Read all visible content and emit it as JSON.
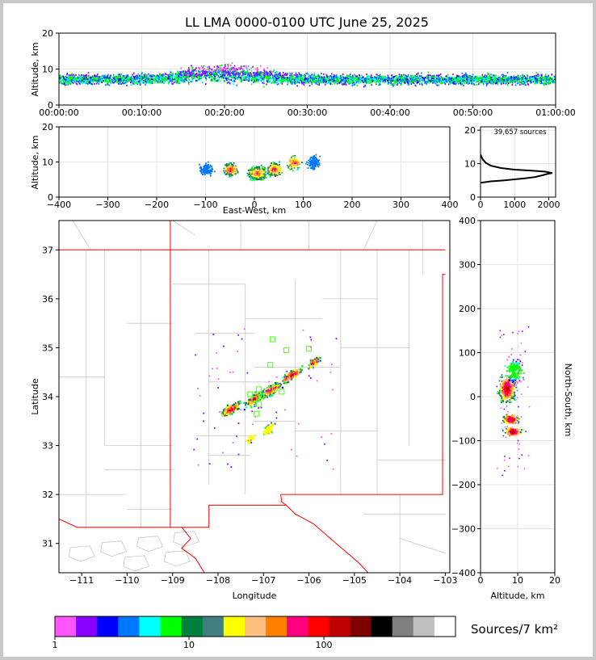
{
  "chart_data": [
    {
      "type": "scatter",
      "panel": "altitude-time",
      "title": "LL LMA 0000-0100 UTC June 25, 2025",
      "ylabel": "Altitude, km",
      "ylim": [
        0,
        20
      ],
      "yticks": [
        "0",
        "10",
        "20"
      ],
      "xticks": [
        "00:00:00",
        "00:10:00",
        "00:20:00",
        "00:30:00",
        "00:40:00",
        "00:50:00",
        "01:00:00"
      ],
      "band_km": [
        4,
        13
      ],
      "peak_time_min": 20,
      "grid": true
    },
    {
      "type": "scatter",
      "panel": "altitude-eastwest",
      "xlabel": "East-West, km",
      "ylabel": "Altitude, km",
      "xlim": [
        -400,
        400
      ],
      "ylim": [
        0,
        20
      ],
      "xticks": [
        "−400",
        "−300",
        "−200",
        "−100",
        "0",
        "100",
        "200",
        "300",
        "400"
      ],
      "yticks": [
        "0",
        "10",
        "20"
      ],
      "clusters": [
        {
          "x": -100,
          "alt": 8
        },
        {
          "x": -50,
          "alt": 8
        },
        {
          "x": 5,
          "alt": 7
        },
        {
          "x": 40,
          "alt": 8
        },
        {
          "x": 80,
          "alt": 10
        },
        {
          "x": 120,
          "alt": 10
        }
      ],
      "grid": true
    },
    {
      "type": "line",
      "panel": "altitude-histogram",
      "annotation": "39,657 sources",
      "xticks": [
        "0",
        "1000",
        "2000"
      ],
      "yticks": [
        "0",
        "10",
        "20"
      ],
      "xlim": [
        0,
        2200
      ],
      "ylim": [
        0,
        21
      ],
      "points": [
        [
          0,
          4.3
        ],
        [
          300,
          4.7
        ],
        [
          700,
          5.0
        ],
        [
          1000,
          5.3
        ],
        [
          1300,
          5.6
        ],
        [
          1600,
          6.0
        ],
        [
          1800,
          6.5
        ],
        [
          1950,
          6.9
        ],
        [
          2100,
          7.2
        ],
        [
          1900,
          7.6
        ],
        [
          1500,
          7.9
        ],
        [
          1000,
          8.2
        ],
        [
          600,
          8.7
        ],
        [
          300,
          9.4
        ],
        [
          150,
          10.3
        ],
        [
          70,
          11.2
        ],
        [
          20,
          12.2
        ],
        [
          0,
          12.8
        ]
      ]
    },
    {
      "type": "scatter",
      "panel": "plan-view-map",
      "xlabel": "Longitude",
      "ylabel": "Latitude",
      "xlim": [
        -111.5,
        -102.9
      ],
      "ylim": [
        30.4,
        37.6
      ],
      "xticks": [
        "−111",
        "−110",
        "−109",
        "−108",
        "−107",
        "−106",
        "−105",
        "−104",
        "−103"
      ],
      "yticks": [
        "31",
        "32",
        "33",
        "34",
        "35",
        "36",
        "37"
      ],
      "stations": [
        [
          -106.8,
          35.17
        ],
        [
          -106.5,
          34.95
        ],
        [
          -106.0,
          34.98
        ],
        [
          -106.85,
          34.65
        ],
        [
          -107.1,
          34.15
        ],
        [
          -107.3,
          34.05
        ],
        [
          -107.05,
          34.0
        ],
        [
          -107.2,
          33.95
        ],
        [
          -107.1,
          33.85
        ],
        [
          -107.15,
          33.65
        ],
        [
          -106.75,
          34.18
        ],
        [
          -106.6,
          34.1
        ]
      ],
      "clusters": [
        {
          "lon": -107.75,
          "lat": 33.75
        },
        {
          "lon": -107.2,
          "lat": 33.98
        },
        {
          "lon": -106.85,
          "lat": 34.15
        },
        {
          "lon": -106.4,
          "lat": 34.45
        },
        {
          "lon": -105.9,
          "lat": 34.72
        },
        {
          "lon": -106.9,
          "lat": 33.35
        },
        {
          "lon": -107.3,
          "lat": 33.15
        }
      ]
    },
    {
      "type": "scatter",
      "panel": "altitude-northsouth",
      "xlabel": "Altitude, km",
      "ylabel": "North-South, km",
      "xlim": [
        0,
        20
      ],
      "ylim": [
        -400,
        400
      ],
      "xticks": [
        "0",
        "10",
        "20"
      ],
      "yticks": [
        "400",
        "300",
        "200",
        "100",
        "0",
        "−100",
        "−200",
        "−300",
        "−400"
      ],
      "clusters": [
        {
          "alt": 7,
          "y": 20
        },
        {
          "alt": 8,
          "y": -50
        },
        {
          "alt": 8.5,
          "y": -78
        },
        {
          "alt": 9,
          "y": 60
        }
      ],
      "grid": true
    },
    {
      "type": "heatmap",
      "panel": "colorbar",
      "title": "Sources/7 km²",
      "tick_labels": [
        "1",
        "10",
        "100"
      ],
      "colors": [
        "#ff55ff",
        "#8800ff",
        "#0000ff",
        "#0077ff",
        "#00ffff",
        "#00ff00",
        "#007f3f",
        "#3f7f7f",
        "#ffff00",
        "#ffbf7f",
        "#ff7f00",
        "#ff007f",
        "#ff0000",
        "#bf0000",
        "#7f0000",
        "#000000",
        "#7f7f7f",
        "#bfbfbf",
        "#ffffff"
      ]
    }
  ]
}
